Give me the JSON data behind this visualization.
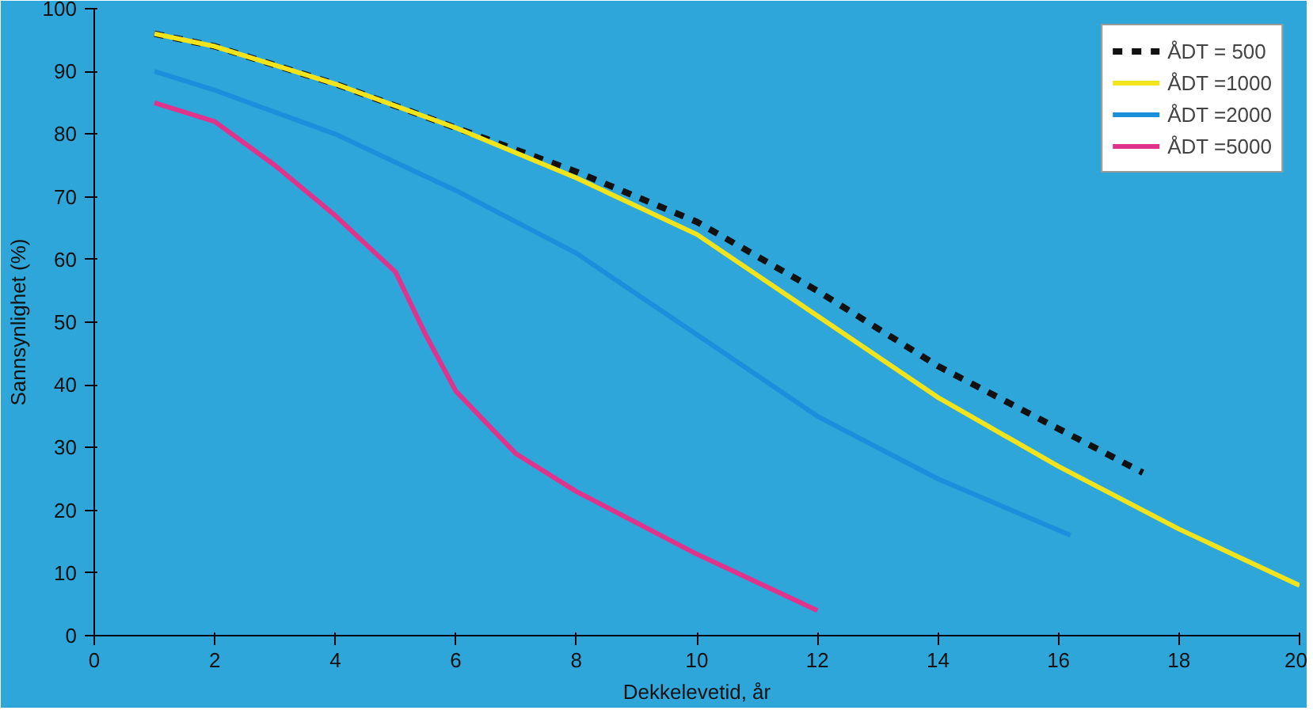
{
  "chart_data": {
    "type": "line",
    "xlabel": "Dekkelevetid, år",
    "ylabel": "Sannsynlighet (%)",
    "xlim": [
      0,
      20
    ],
    "ylim": [
      0,
      100
    ],
    "xticks": [
      0,
      2,
      4,
      6,
      8,
      10,
      12,
      14,
      16,
      18,
      20
    ],
    "yticks": [
      0,
      10,
      20,
      30,
      40,
      50,
      60,
      70,
      80,
      90,
      100
    ],
    "grid": false,
    "legend": "top right",
    "series": [
      {
        "name": "ÅDT = 500",
        "color": "#111111",
        "line_style": "dashed",
        "x": [
          1,
          2,
          4,
          6,
          8,
          10,
          12,
          14,
          16,
          17.4
        ],
        "values": [
          96,
          94,
          88,
          81,
          74,
          66,
          55,
          43,
          33,
          26
        ]
      },
      {
        "name": "ÅDT =1000",
        "color": "#f2e41c",
        "x": [
          1,
          2,
          4,
          6,
          8,
          10,
          12,
          14,
          16,
          18,
          20
        ],
        "values": [
          96,
          94,
          88,
          81,
          73,
          64,
          51,
          38,
          27,
          17,
          8
        ]
      },
      {
        "name": "ÅDT =2000",
        "color": "#1b8fdc",
        "x": [
          1,
          2,
          4,
          6,
          8,
          10,
          12,
          14,
          16.2
        ],
        "values": [
          90,
          87,
          80,
          71,
          61,
          48,
          35,
          25,
          16
        ]
      },
      {
        "name": "ÅDT =5000",
        "color": "#e0338c",
        "x": [
          1,
          2,
          3,
          4,
          5,
          5.5,
          6,
          7,
          8,
          10,
          12
        ],
        "values": [
          85,
          82,
          75,
          67,
          58,
          48,
          39,
          29,
          23,
          13,
          4
        ]
      }
    ]
  }
}
